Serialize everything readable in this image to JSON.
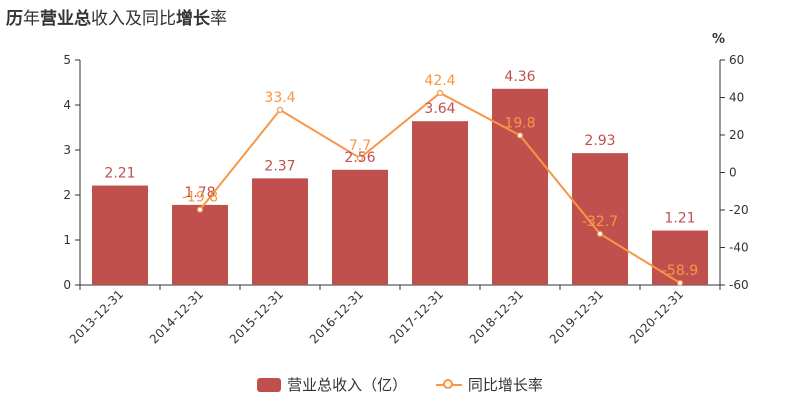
{
  "header": {
    "title_parts": [
      {
        "text": "历",
        "bold": true
      },
      {
        "text": "年",
        "bold": false
      },
      {
        "text": "营业总",
        "bold": true
      },
      {
        "text": "收入及同比",
        "bold": false
      },
      {
        "text": "增",
        "bold": true
      },
      {
        "text": "长",
        "bold": true
      },
      {
        "text": "率",
        "bold": false
      }
    ]
  },
  "colors": {
    "bar": "#c0504d",
    "bar_label": "#c0504d",
    "line": "#f79646",
    "axis": "#333333",
    "tick_text": "#333333"
  },
  "legend": {
    "bar_label": "营业总收入（亿）",
    "line_label": "同比增长率"
  },
  "chart_data": {
    "type": "bar",
    "categories": [
      "2013-12-31",
      "2014-12-31",
      "2015-12-31",
      "2016-12-31",
      "2017-12-31",
      "2018-12-31",
      "2019-12-31",
      "2020-12-31"
    ],
    "series": [
      {
        "name": "营业总收入（亿）",
        "type": "bar",
        "axis": "left",
        "values": [
          2.21,
          1.78,
          2.37,
          2.56,
          3.64,
          4.36,
          2.93,
          1.21
        ],
        "labels": [
          "2.21",
          "1.78",
          "2.37",
          "2.56",
          "3.64",
          "4.36",
          "2.93",
          "1.21"
        ]
      },
      {
        "name": "同比增长率",
        "type": "line",
        "axis": "right",
        "values": [
          null,
          -19.8,
          33.4,
          7.7,
          42.4,
          19.8,
          -32.7,
          -58.9
        ],
        "labels": [
          "",
          "-19.8",
          "33.4",
          "7.7",
          "42.4",
          "19.8",
          "-32.7",
          "-58.9"
        ]
      }
    ],
    "y_left": {
      "min": 0,
      "max": 5,
      "ticks": [
        "0",
        "1",
        "2",
        "3",
        "4",
        "5"
      ]
    },
    "y_right": {
      "min": -60,
      "max": 60,
      "label": "%",
      "ticks": [
        "-60",
        "-40",
        "-20",
        "0",
        "20",
        "40",
        "60"
      ]
    },
    "grid": false,
    "legend_position": "bottom"
  }
}
